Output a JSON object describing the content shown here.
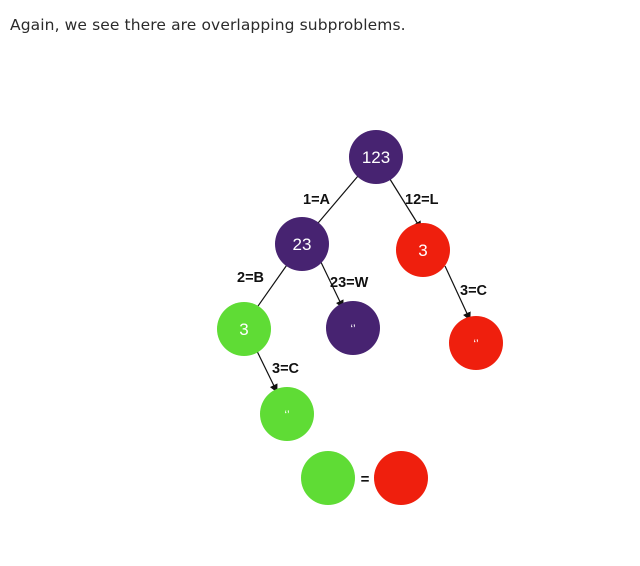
{
  "intro_text": "Again, we see there are overlapping subproblems.",
  "colors": {
    "purple": "#472371",
    "red": "#ef1f0d",
    "green": "#5fdc35",
    "edge": "#111111"
  },
  "nodes": {
    "n123": {
      "label": "123",
      "color": "purple"
    },
    "n23": {
      "label": "23",
      "color": "purple"
    },
    "n3_red": {
      "label": "3",
      "color": "red"
    },
    "n3_green": {
      "label": "3",
      "color": "green"
    },
    "n_empty_purple": {
      "label": "‘’",
      "color": "purple"
    },
    "n_empty_red": {
      "label": "‘’",
      "color": "red"
    },
    "n_empty_green": {
      "label": "‘’",
      "color": "green"
    }
  },
  "edges": {
    "e_1A": "1=A",
    "e_12L": "12=L",
    "e_2B": "2=B",
    "e_23W": "23=W",
    "e_3C_red": "3=C",
    "e_3C_green": "3=C"
  },
  "legend": {
    "equals": "="
  }
}
